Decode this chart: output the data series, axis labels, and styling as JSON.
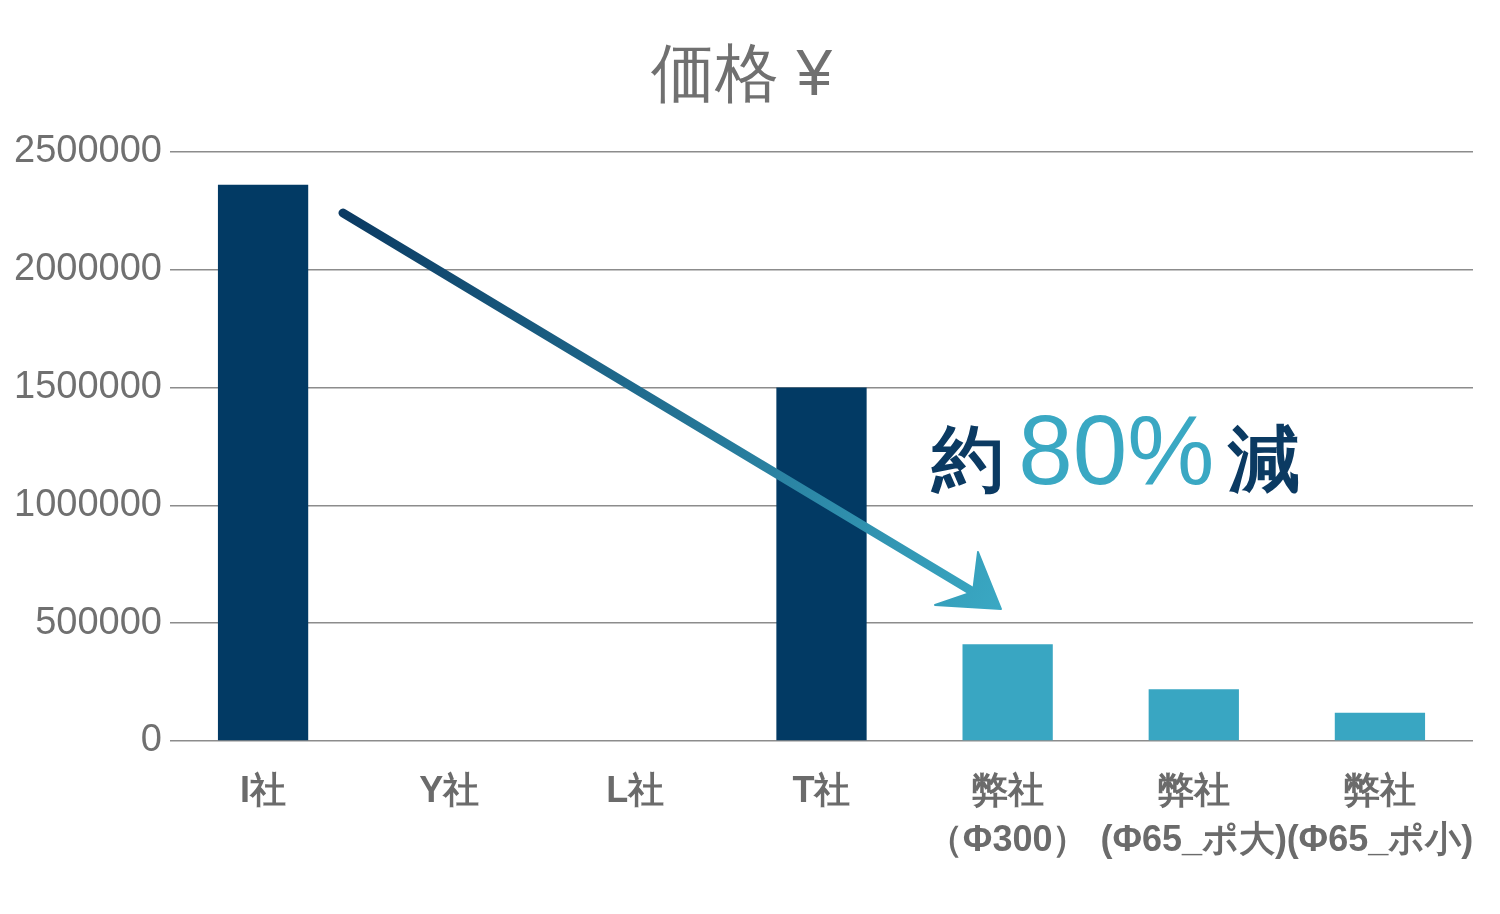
{
  "chart_data": {
    "type": "bar",
    "title": "価格 ¥",
    "categories": [
      "I社",
      "Y社",
      "L社",
      "T社",
      "弊社（Φ300）",
      "弊社(Φ65_ポ大)",
      "弊社(Φ65_ポ小)"
    ],
    "values": [
      2360000,
      null,
      null,
      1500000,
      410000,
      220000,
      120000
    ],
    "colors": [
      "#023a64",
      "#023a64",
      "#023a64",
      "#023a64",
      "#39a6c2",
      "#39a6c2",
      "#39a6c2"
    ],
    "ylim": [
      0,
      2500000
    ],
    "yticks": [
      0,
      500000,
      1000000,
      1500000,
      2000000,
      2500000
    ],
    "grid": "y",
    "annotations": [
      "約80%減"
    ]
  }
}
